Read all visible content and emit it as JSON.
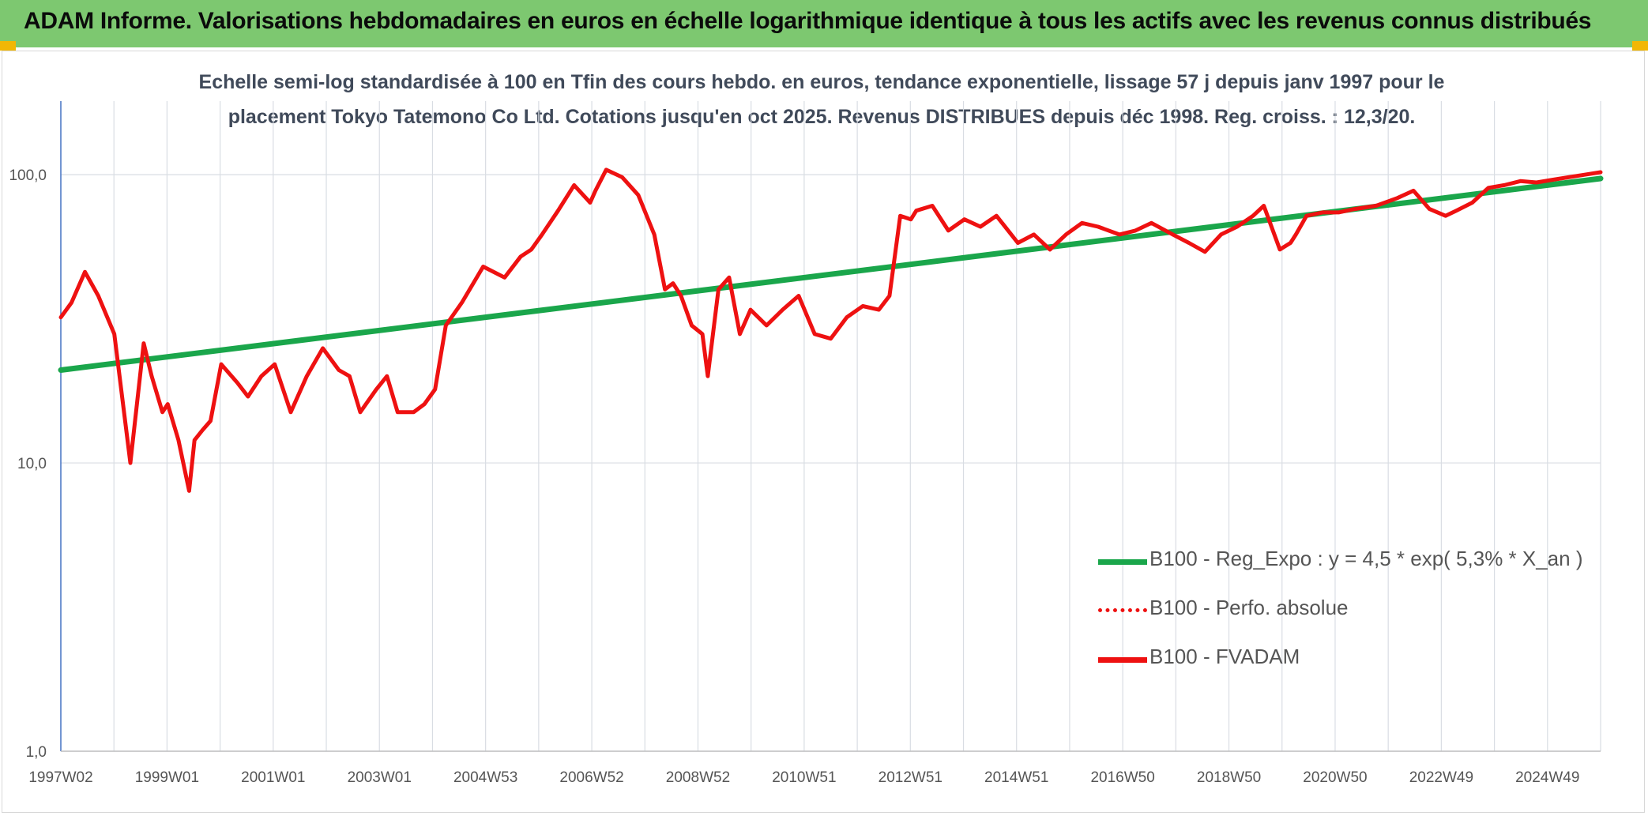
{
  "header": {
    "title": "ADAM Informe. Valorisations hebdomadaires en euros en échelle logarithmique identique à tous les actifs avec les revenus connus distribués"
  },
  "colors": {
    "header_bg": "#7dc870",
    "regression": "#1aa64b",
    "fvadam": "#ee1111",
    "perfo": "#ee1111",
    "grid": "#d9dde3",
    "axis": "#4472c4"
  },
  "chart_data": {
    "type": "line",
    "title_line1": "Echelle semi-log standardisée à 100 en Tfin des cours hebdo. en euros, tendance exponentielle, lissage 57 j depuis janv 1997 pour le",
    "title_line2": "placement Tokyo Tatemono Co Ltd. Cotations jusqu'en oct 2025. Revenus DISTRIBUES depuis déc 1998. Reg. croiss. : 12,3/20.",
    "y_scale": "log",
    "ylim": [
      1,
      180
    ],
    "y_ticks": [
      "1,0",
      "10,0",
      "100,0"
    ],
    "x_ticks": [
      "1997W02",
      "1999W01",
      "2001W01",
      "2003W01",
      "2004W53",
      "2006W52",
      "2008W52",
      "2010W51",
      "2012W51",
      "2014W51",
      "2016W50",
      "2018W50",
      "2020W50",
      "2022W49",
      "2024W49"
    ],
    "x_start_year": 1997.0,
    "x_end_year": 2025.8,
    "legend": [
      {
        "name": "B100 - Reg_Expo : y = 4,5 * exp( 5,3% *  X_an )",
        "style": "solid-green"
      },
      {
        "name": "B100 - Perfo. absolue",
        "style": "dotted-red"
      },
      {
        "name": "B100 - FVADAM",
        "style": "solid-red"
      }
    ],
    "series": [
      {
        "name": "B100 - Reg_Expo : y = 4,5 * exp( 5,3% *  X_an )",
        "x": [
          1997.0,
          2025.8
        ],
        "values": [
          21.0,
          97.0
        ]
      },
      {
        "name": "B100 - FVADAM",
        "x": [
          1997.0,
          1997.2,
          1997.45,
          1997.7,
          1998.0,
          1998.3,
          1998.55,
          1998.7,
          1998.9,
          1999.0,
          1999.2,
          1999.4,
          1999.5,
          1999.65,
          1999.8,
          2000.0,
          2000.3,
          2000.5,
          2000.75,
          2001.0,
          2001.3,
          2001.6,
          2001.9,
          2002.2,
          2002.4,
          2002.6,
          2002.9,
          2003.1,
          2003.3,
          2003.6,
          2003.8,
          2004.0,
          2004.2,
          2004.5,
          2004.9,
          2005.3,
          2005.6,
          2005.8,
          2006.0,
          2006.3,
          2006.6,
          2006.9,
          2007.0,
          2007.2,
          2007.5,
          2007.8,
          2008.1,
          2008.3,
          2008.45,
          2008.6,
          2008.8,
          2009.0,
          2009.1,
          2009.3,
          2009.5,
          2009.7,
          2009.9,
          2010.2,
          2010.5,
          2010.8,
          2011.1,
          2011.4,
          2011.7,
          2012.0,
          2012.3,
          2012.5,
          2012.7,
          2012.9,
          2013.0,
          2013.3,
          2013.6,
          2013.9,
          2014.2,
          2014.5,
          2014.9,
          2015.2,
          2015.5,
          2015.8,
          2016.1,
          2016.4,
          2016.8,
          2017.1,
          2017.4,
          2017.8,
          2018.1,
          2018.4,
          2018.7,
          2019.0,
          2019.3,
          2019.5,
          2019.8,
          2020.0,
          2020.1,
          2020.3,
          2020.6,
          2020.9,
          2021.2,
          2021.6,
          2022.0,
          2022.3,
          2022.6,
          2022.9,
          2023.1,
          2023.4,
          2023.7,
          2024.0,
          2024.3,
          2024.6,
          2024.9,
          2025.2,
          2025.5,
          2025.8
        ],
        "values": [
          32,
          36,
          46,
          38,
          28,
          10,
          26,
          20,
          15,
          16,
          12,
          8,
          12,
          13,
          14,
          22,
          19,
          17,
          20,
          22,
          15,
          20,
          25,
          21,
          20,
          15,
          18,
          20,
          15,
          15,
          16,
          18,
          30,
          36,
          48,
          44,
          52,
          55,
          62,
          75,
          92,
          80,
          88,
          104,
          98,
          85,
          62,
          40,
          42,
          38,
          30,
          28,
          20,
          40,
          44,
          28,
          34,
          30,
          34,
          38,
          28,
          27,
          32,
          35,
          34,
          38,
          72,
          70,
          75,
          78,
          64,
          70,
          66,
          72,
          58,
          62,
          55,
          62,
          68,
          66,
          62,
          64,
          68,
          62,
          58,
          54,
          62,
          66,
          72,
          78,
          55,
          58,
          62,
          72,
          74,
          74,
          76,
          78,
          83,
          88,
          76,
          72,
          75,
          80,
          90,
          92,
          95,
          94,
          96,
          98,
          100,
          102
        ]
      }
    ]
  }
}
